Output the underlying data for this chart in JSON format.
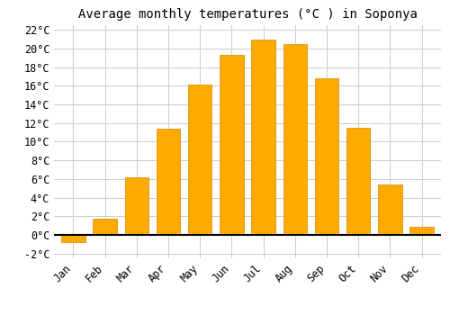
{
  "title": "Average monthly temperatures (°C ) in Soponya",
  "months": [
    "Jan",
    "Feb",
    "Mar",
    "Apr",
    "May",
    "Jun",
    "Jul",
    "Aug",
    "Sep",
    "Oct",
    "Nov",
    "Dec"
  ],
  "values": [
    -0.8,
    1.7,
    6.2,
    11.4,
    16.1,
    19.3,
    21.0,
    20.5,
    16.8,
    11.5,
    5.4,
    0.9
  ],
  "bar_color": "#FFAA00",
  "bar_edge_color": "#CC8800",
  "background_color": "#ffffff",
  "grid_color": "#cccccc",
  "ylim": [
    -2.5,
    22.5
  ],
  "yticks": [
    -2,
    0,
    2,
    4,
    6,
    8,
    10,
    12,
    14,
    16,
    18,
    20,
    22
  ],
  "title_fontsize": 10,
  "tick_fontsize": 8.5,
  "zero_line_color": "#000000",
  "bar_width": 0.75
}
